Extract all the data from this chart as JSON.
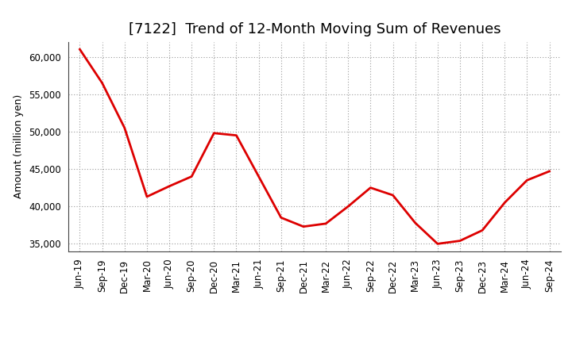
{
  "title": "[7122]  Trend of 12-Month Moving Sum of Revenues",
  "ylabel": "Amount (million yen)",
  "line_color": "#dd0000",
  "background_color": "#ffffff",
  "plot_bg_color": "#ffffff",
  "grid_color": "#999999",
  "labels": [
    "Jun-19",
    "Sep-19",
    "Dec-19",
    "Mar-20",
    "Jun-20",
    "Sep-20",
    "Dec-20",
    "Mar-21",
    "Jun-21",
    "Sep-21",
    "Dec-21",
    "Mar-22",
    "Jun-22",
    "Sep-22",
    "Dec-22",
    "Mar-23",
    "Jun-23",
    "Sep-23",
    "Dec-23",
    "Mar-24",
    "Jun-24",
    "Sep-24"
  ],
  "values": [
    61000,
    56500,
    50500,
    41300,
    42700,
    44000,
    49800,
    49500,
    44000,
    38500,
    37300,
    37700,
    40000,
    42500,
    41500,
    37800,
    35000,
    35400,
    36800,
    40500,
    43500,
    44700
  ],
  "ylim": [
    34000,
    62000
  ],
  "yticks": [
    35000,
    40000,
    45000,
    50000,
    55000,
    60000
  ],
  "line_width": 2.0,
  "title_fontsize": 13,
  "axis_fontsize": 9,
  "tick_fontsize": 8.5
}
